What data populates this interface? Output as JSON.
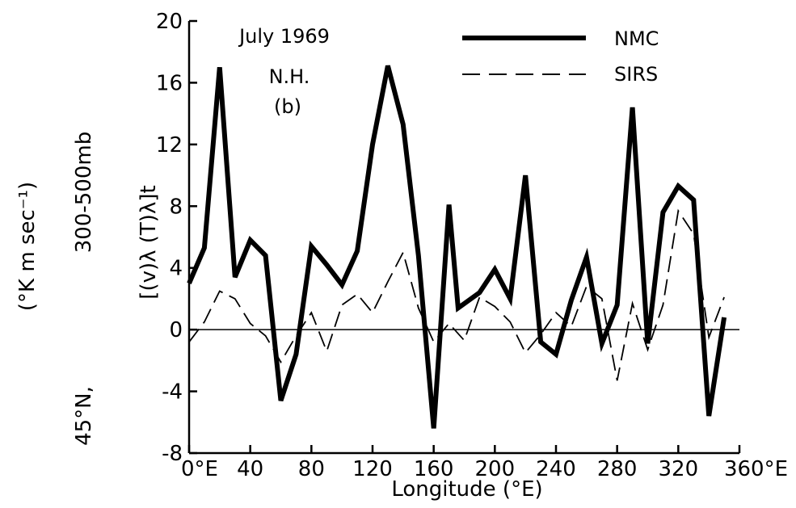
{
  "chart_data": {
    "type": "line",
    "xlabel": "Longitude (°E)",
    "ylabel_left": "(°K m sec⁻¹)",
    "ylabel_left2": "45°N,",
    "ylabel_right": "300-500mb",
    "ylabel_symbol": "[(v)λ (T)λ]t",
    "annotation": [
      "July 1969",
      "N.H.",
      "(b)"
    ],
    "xlim": [
      0,
      360
    ],
    "ylim": [
      -8,
      20
    ],
    "x_ticks": [
      0,
      40,
      80,
      120,
      160,
      200,
      240,
      280,
      320,
      360
    ],
    "x_tick_labels": [
      "0°E",
      "40",
      "80",
      "120",
      "160",
      "200",
      "240",
      "280",
      "320",
      "360°E"
    ],
    "y_ticks": [
      -8,
      -4,
      0,
      4,
      8,
      12,
      16,
      20
    ],
    "y_tick_labels": [
      "-8",
      "-4",
      "0",
      "4",
      "8",
      "12",
      "16",
      "20"
    ],
    "legend_position": "top-right",
    "series": [
      {
        "name": "NMC",
        "style": "solid",
        "points": [
          [
            0,
            3
          ],
          [
            10,
            5.3
          ],
          [
            20,
            17
          ],
          [
            30,
            3.4
          ],
          [
            40,
            5.8
          ],
          [
            50,
            4.8
          ],
          [
            60,
            -4.6
          ],
          [
            70,
            -1.6
          ],
          [
            80,
            5.4
          ],
          [
            90,
            4.2
          ],
          [
            100,
            2.9
          ],
          [
            110,
            5.1
          ],
          [
            120,
            12
          ],
          [
            130,
            17.1
          ],
          [
            140,
            13.3
          ],
          [
            150,
            4.8
          ],
          [
            160,
            -6.4
          ],
          [
            170,
            8.1
          ],
          [
            176,
            1.4
          ],
          [
            190,
            2.4
          ],
          [
            200,
            3.9
          ],
          [
            210,
            2
          ],
          [
            220,
            10
          ],
          [
            230,
            -0.8
          ],
          [
            240,
            -1.6
          ],
          [
            250,
            1.9
          ],
          [
            260,
            4.7
          ],
          [
            270,
            -0.9
          ],
          [
            280,
            1.6
          ],
          [
            290,
            14.4
          ],
          [
            300,
            -0.9
          ],
          [
            310,
            7.6
          ],
          [
            320,
            9.3
          ],
          [
            330,
            8.4
          ],
          [
            340,
            -5.6
          ],
          [
            350,
            0.8
          ]
        ]
      },
      {
        "name": "SIRS",
        "style": "dashed",
        "points": [
          [
            0,
            -0.8
          ],
          [
            10,
            0.5
          ],
          [
            20,
            2.5
          ],
          [
            30,
            2
          ],
          [
            40,
            0.4
          ],
          [
            50,
            -0.4
          ],
          [
            60,
            -2.1
          ],
          [
            70,
            -0.4
          ],
          [
            80,
            1.1
          ],
          [
            90,
            -1.4
          ],
          [
            100,
            1.6
          ],
          [
            110,
            2.3
          ],
          [
            120,
            1.1
          ],
          [
            130,
            3.1
          ],
          [
            140,
            5
          ],
          [
            150,
            1.4
          ],
          [
            160,
            -0.8
          ],
          [
            170,
            0.4
          ],
          [
            180,
            -0.7
          ],
          [
            190,
            2.1
          ],
          [
            200,
            1.5
          ],
          [
            210,
            0.5
          ],
          [
            220,
            -1.5
          ],
          [
            230,
            -0.3
          ],
          [
            240,
            1.1
          ],
          [
            250,
            0.2
          ],
          [
            260,
            2.8
          ],
          [
            270,
            2
          ],
          [
            280,
            -3.3
          ],
          [
            290,
            1.7
          ],
          [
            300,
            -1.3
          ],
          [
            310,
            1.6
          ],
          [
            320,
            7.7
          ],
          [
            330,
            6.2
          ],
          [
            340,
            -0.5
          ],
          [
            350,
            2.1
          ]
        ]
      }
    ]
  }
}
